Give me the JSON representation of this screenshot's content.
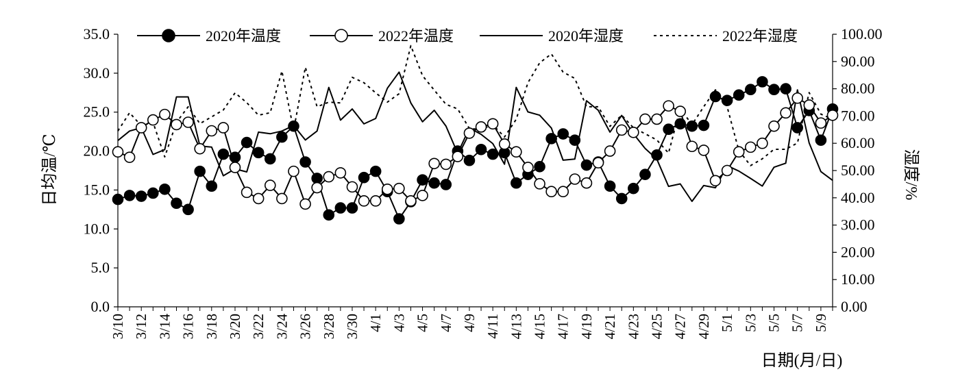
{
  "chart_data": {
    "type": "line",
    "title": "",
    "xlabel": "日期(月/日)",
    "ylabel_left": "日均温/℃",
    "ylabel_right": "湿度/%",
    "ylim_left": [
      0,
      35
    ],
    "ylim_right": [
      0,
      100
    ],
    "yticks_left": [
      "0.0",
      "5.0",
      "10.0",
      "15.0",
      "20.0",
      "25.0",
      "30.0",
      "35.0"
    ],
    "yticks_right": [
      "0.00",
      "10.00",
      "20.00",
      "30.00",
      "40.00",
      "50.00",
      "60.00",
      "70.00",
      "80.00",
      "90.00",
      "100.00"
    ],
    "grid": false,
    "legend_position": "top",
    "x_tick_labels": [
      "3/10",
      "3/12",
      "3/14",
      "3/16",
      "3/18",
      "3/20",
      "3/22",
      "3/24",
      "3/26",
      "3/28",
      "3/30",
      "4/1",
      "4/3",
      "4/5",
      "4/7",
      "4/9",
      "4/11",
      "4/13",
      "4/15",
      "4/17",
      "4/19",
      "4/21",
      "4/23",
      "4/25",
      "4/27",
      "4/29",
      "5/1",
      "5/3",
      "5/5",
      "5/7",
      "5/9"
    ],
    "series": [
      {
        "name": "2020年温度",
        "axis": "left",
        "style": "line-filled-marker",
        "color": "#000000",
        "values": [
          13.8,
          14.3,
          14.2,
          14.6,
          15.1,
          13.3,
          12.5,
          17.4,
          15.5,
          19.6,
          19.2,
          21.1,
          19.8,
          19.0,
          21.8,
          23.2,
          18.6,
          16.5,
          11.8,
          12.7,
          12.7,
          16.6,
          17.4,
          14.8,
          11.3,
          13.5,
          16.3,
          15.9,
          15.7,
          20.0,
          18.8,
          20.2,
          19.6,
          19.8,
          15.9,
          17.0,
          18.0,
          21.6,
          22.2,
          21.4,
          18.2,
          18.6,
          15.5,
          13.9,
          15.2,
          17.0,
          19.5,
          22.8,
          23.5,
          23.2,
          23.3,
          27.0,
          26.5,
          27.2,
          27.9,
          28.9,
          27.9,
          28.0,
          23.0,
          25.2,
          21.4,
          25.4
        ]
      },
      {
        "name": "2022年温度",
        "axis": "left",
        "style": "line-open-marker",
        "color": "#000000",
        "values": [
          19.9,
          19.2,
          23.0,
          24.0,
          24.7,
          23.4,
          23.7,
          20.3,
          22.6,
          23.0,
          17.9,
          14.7,
          13.9,
          15.6,
          13.9,
          17.4,
          13.2,
          15.3,
          16.7,
          17.2,
          15.4,
          13.6,
          13.6,
          15.1,
          15.2,
          13.6,
          14.3,
          18.4,
          18.3,
          19.3,
          22.3,
          23.1,
          23.5,
          20.9,
          19.9,
          17.9,
          15.8,
          14.8,
          14.8,
          16.4,
          15.9,
          18.5,
          20.0,
          22.7,
          22.4,
          24.1,
          24.1,
          25.8,
          25.1,
          20.6,
          20.1,
          16.2,
          17.5,
          19.9,
          20.5,
          21.0,
          23.2,
          24.9,
          26.8,
          25.9,
          23.6,
          24.6
        ]
      },
      {
        "name": "2020年湿度",
        "axis": "right",
        "style": "solid",
        "color": "#000000",
        "values": [
          61,
          64.5,
          65.7,
          55.9,
          57.7,
          77,
          77,
          59,
          58.6,
          48.1,
          50.6,
          49.5,
          64.1,
          63.5,
          64.5,
          66.5,
          61.2,
          64.5,
          80.5,
          68.5,
          72.6,
          67.1,
          69.1,
          80.2,
          86.1,
          74.8,
          67.9,
          72.1,
          66.3,
          56.3,
          65.6,
          63.3,
          59.9,
          52.3,
          80.5,
          71.5,
          70.3,
          65.6,
          53.8,
          54.2,
          75.6,
          72.1,
          64.1,
          70.2,
          63.5,
          58.1,
          54.2,
          44.2,
          45.1,
          38.7,
          44.5,
          43.7,
          51.8,
          49.8,
          47.1,
          44.3,
          51.2,
          52.7,
          79.6,
          60.1,
          49.6,
          46.4
        ]
      },
      {
        "name": "2022年湿度",
        "axis": "right",
        "style": "dotted",
        "color": "#000000",
        "values": [
          64.5,
          71.2,
          66.4,
          67.7,
          55,
          67.7,
          73.4,
          67.2,
          69.7,
          72.2,
          78.5,
          74.9,
          70.3,
          71.2,
          86.5,
          64.8,
          87.9,
          73.4,
          75.1,
          74.8,
          84.2,
          82.2,
          78.5,
          75.1,
          78.2,
          95.8,
          84.8,
          79.5,
          74.3,
          72.6,
          65.4,
          65.1,
          66.8,
          62.3,
          68.8,
          82.2,
          89.5,
          92.8,
          86.1,
          83.8,
          73.4,
          73.4,
          66.2,
          70.3,
          65.7,
          63.5,
          61.2,
          56.4,
          72.8,
          66.8,
          73.4,
          79.6,
          73.4,
          57.3,
          51.8,
          54.3,
          57.8,
          57.8,
          60.1,
          78.6,
          70.7,
          68.8
        ]
      }
    ]
  }
}
